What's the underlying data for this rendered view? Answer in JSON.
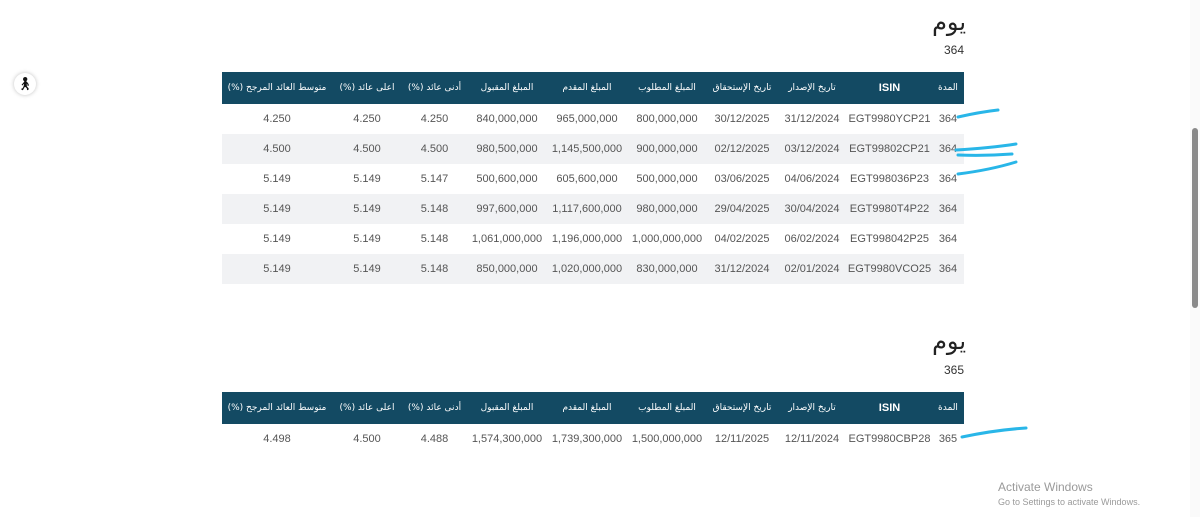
{
  "accessibility_icon": "accessibility-icon",
  "columns": [
    "المدة",
    "ISIN",
    "تاريخ الإصدار",
    "تاريخ الإستحقاق",
    "المبلغ المطلوب",
    "المبلغ المقدم",
    "المبلغ المقبول",
    "أدنى عائد (%)",
    "اعلى عائد (%)",
    "متوسط العائد المرجح (%)"
  ],
  "sections": [
    {
      "title": "يوم",
      "days": "364",
      "rows": [
        [
          "364",
          "EGT9980YCP21",
          "31/12/2024",
          "30/12/2025",
          "800,000,000",
          "965,000,000",
          "840,000,000",
          "4.250",
          "4.250",
          "4.250"
        ],
        [
          "364",
          "EGT99802CP21",
          "03/12/2024",
          "02/12/2025",
          "900,000,000",
          "1,145,500,000",
          "980,500,000",
          "4.500",
          "4.500",
          "4.500"
        ],
        [
          "364",
          "EGT998036P23",
          "04/06/2024",
          "03/06/2025",
          "500,000,000",
          "605,600,000",
          "500,600,000",
          "5.147",
          "5.149",
          "5.149"
        ],
        [
          "364",
          "EGT9980T4P22",
          "30/04/2024",
          "29/04/2025",
          "980,000,000",
          "1,117,600,000",
          "997,600,000",
          "5.148",
          "5.149",
          "5.149"
        ],
        [
          "364",
          "EGT998042P25",
          "06/02/2024",
          "04/02/2025",
          "1,000,000,000",
          "1,196,000,000",
          "1,061,000,000",
          "5.148",
          "5.149",
          "5.149"
        ],
        [
          "364",
          "EGT9980VCO25",
          "02/01/2024",
          "31/12/2024",
          "830,000,000",
          "1,020,000,000",
          "850,000,000",
          "5.148",
          "5.149",
          "5.149"
        ]
      ]
    },
    {
      "title": "يوم",
      "days": "365",
      "rows": [
        [
          "365",
          "EGT9980CBP28",
          "12/11/2024",
          "12/11/2025",
          "1,500,000,000",
          "1,739,300,000",
          "1,574,300,000",
          "4.488",
          "4.500",
          "4.498"
        ]
      ]
    }
  ],
  "watermark": {
    "line1": "Activate Windows",
    "line2": "Go to Settings to activate Windows."
  },
  "annotation_color": "#29b6e8"
}
